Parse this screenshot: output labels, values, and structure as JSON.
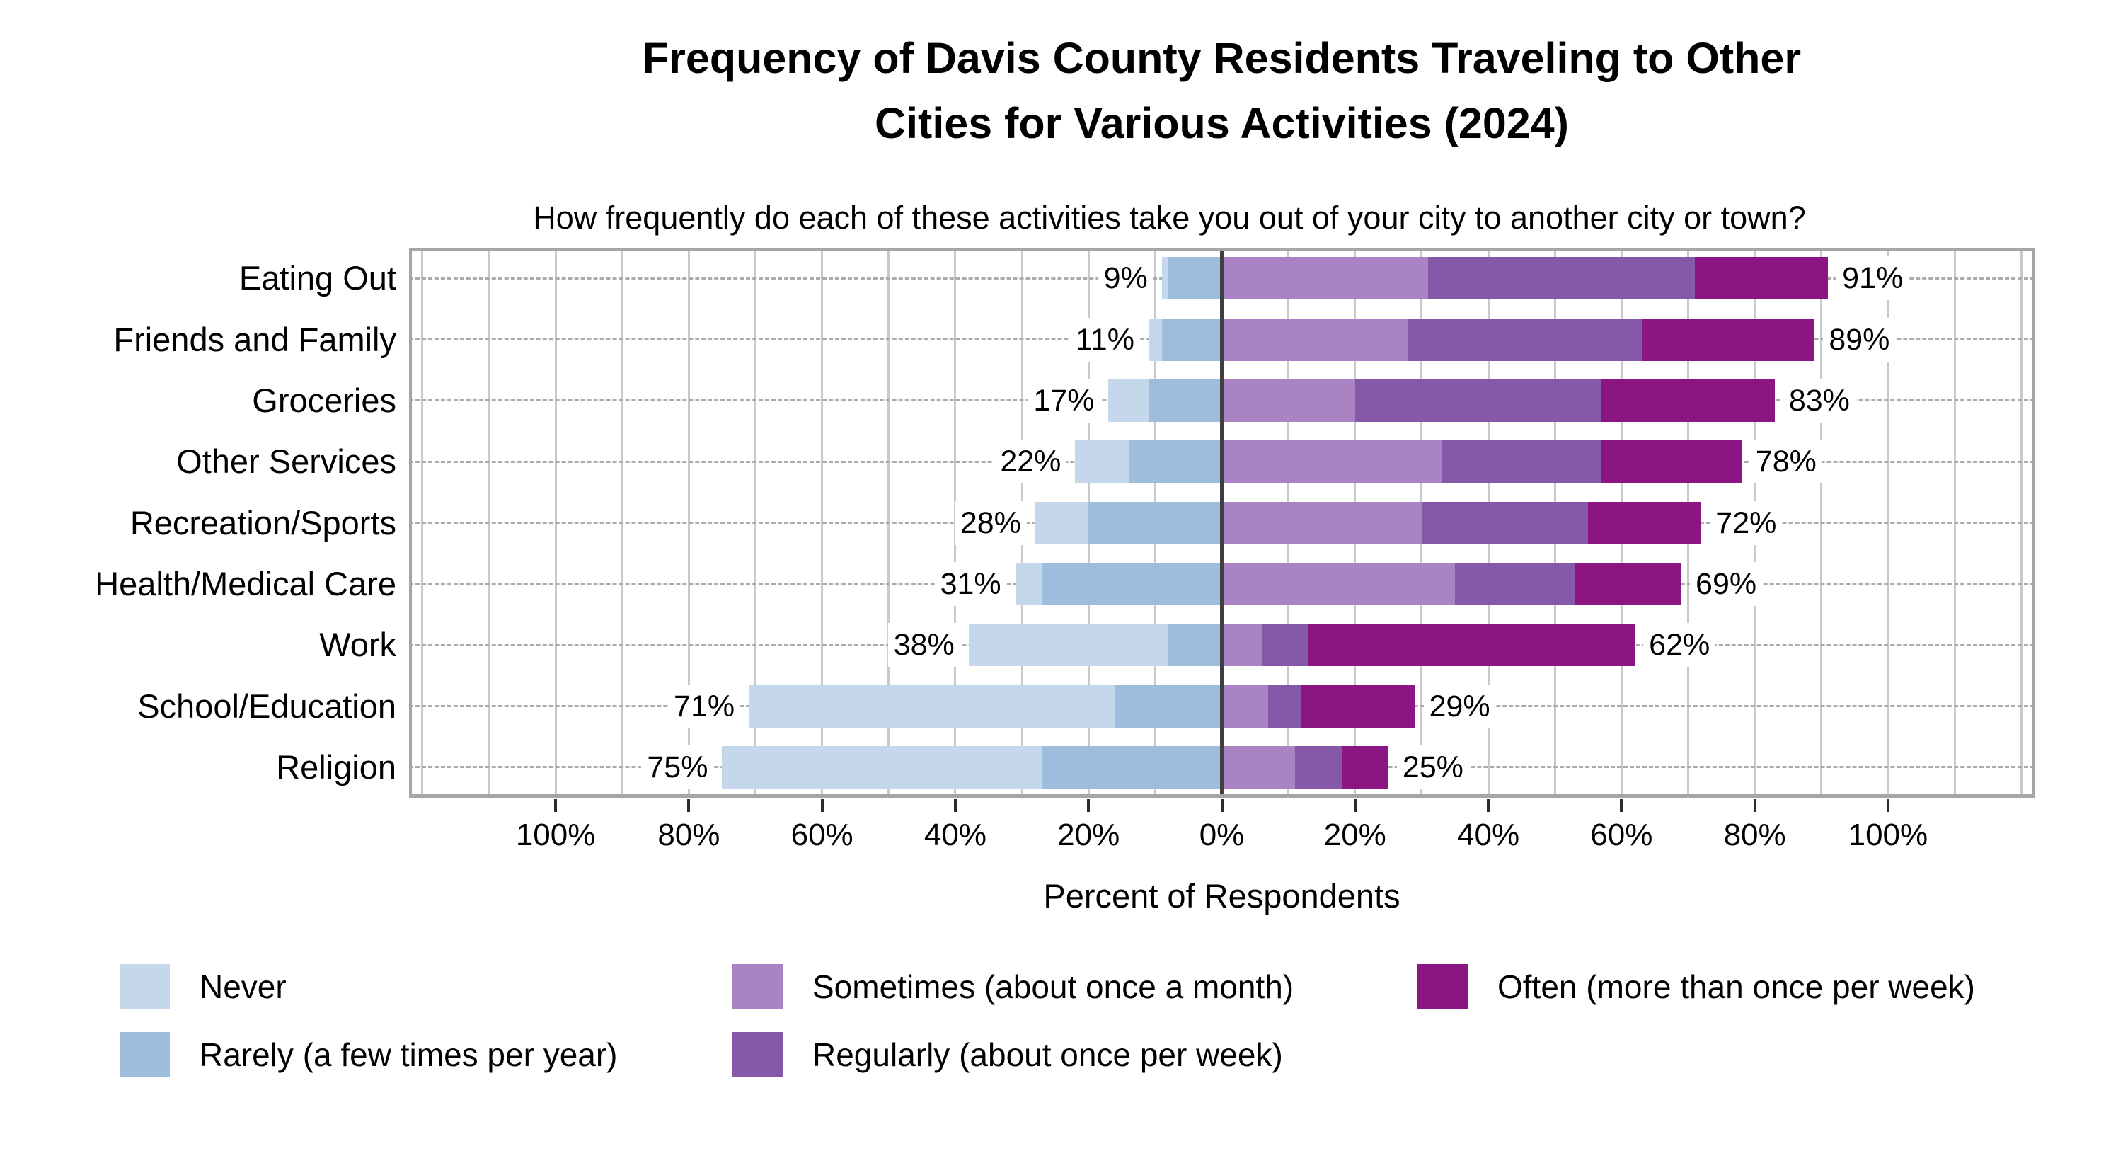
{
  "title": {
    "line1": "Frequency of Davis County Residents Traveling to Other",
    "line2": "Cities for Various Activities (2024)"
  },
  "subtitle": "How frequently do each of these activities take you out of your city to another city or town?",
  "chart_data": {
    "type": "diverging_stacked_bar",
    "categories": [
      "Eating Out",
      "Friends and Family",
      "Groceries",
      "Other Services",
      "Recreation/Sports",
      "Health/Medical Care",
      "Work",
      "School/Education",
      "Religion"
    ],
    "series": [
      {
        "name": "Never",
        "side": "left",
        "color": "#c5d7eb",
        "values": [
          1,
          2,
          6,
          8,
          8,
          4,
          30,
          55,
          48
        ]
      },
      {
        "name": "Rarely (a few times per year)",
        "side": "left",
        "color": "#9ebcdb",
        "values": [
          8,
          9,
          11,
          14,
          20,
          27,
          8,
          16,
          27
        ]
      },
      {
        "name": "Sometimes (about once a month)",
        "side": "right",
        "color": "#aa83c5",
        "values": [
          31,
          28,
          20,
          33,
          30,
          35,
          6,
          7,
          11
        ]
      },
      {
        "name": "Regularly (about once per week)",
        "side": "right",
        "color": "#8659a8",
        "values": [
          40,
          35,
          37,
          24,
          25,
          18,
          7,
          5,
          7
        ]
      },
      {
        "name": "Often (more than once per week)",
        "side": "right",
        "color": "#8b1582",
        "values": [
          20,
          26,
          26,
          21,
          17,
          16,
          49,
          17,
          7
        ]
      }
    ],
    "left_totals": [
      9,
      11,
      17,
      22,
      28,
      31,
      38,
      71,
      75
    ],
    "right_totals": [
      91,
      89,
      83,
      78,
      72,
      69,
      62,
      29,
      25
    ],
    "xlabel": "Percent of Respondents",
    "x_ticks": [
      -100,
      -80,
      -60,
      -40,
      -20,
      0,
      20,
      40,
      60,
      80,
      100
    ],
    "x_tick_labels": [
      "100%",
      "80%",
      "60%",
      "40%",
      "20%",
      "0%",
      "20%",
      "40%",
      "60%",
      "80%",
      "100%"
    ],
    "xlim": [
      -122,
      122
    ],
    "gridline_step": 10,
    "grid": true,
    "legend_position": "bottom"
  },
  "legend": {
    "items": [
      {
        "label": "Never",
        "color": "#c5d7eb",
        "col": 0,
        "row": 0
      },
      {
        "label": "Rarely (a few times per year)",
        "color": "#9ebcdb",
        "col": 0,
        "row": 1
      },
      {
        "label": "Sometimes (about once a month)",
        "color": "#aa83c5",
        "col": 1,
        "row": 0
      },
      {
        "label": "Regularly (about once per week)",
        "color": "#8659a8",
        "col": 1,
        "row": 1
      },
      {
        "label": "Often (more than once per week)",
        "color": "#8b1582",
        "col": 2,
        "row": 0
      }
    ]
  },
  "colors": {
    "gridline": "#c9c9c9",
    "zero_line": "#3f3f3f",
    "frame": "#a6a6a6",
    "row_dash": "#ababab",
    "tick": "#2b2b2b",
    "text": "#000000",
    "background": "#ffffff"
  }
}
